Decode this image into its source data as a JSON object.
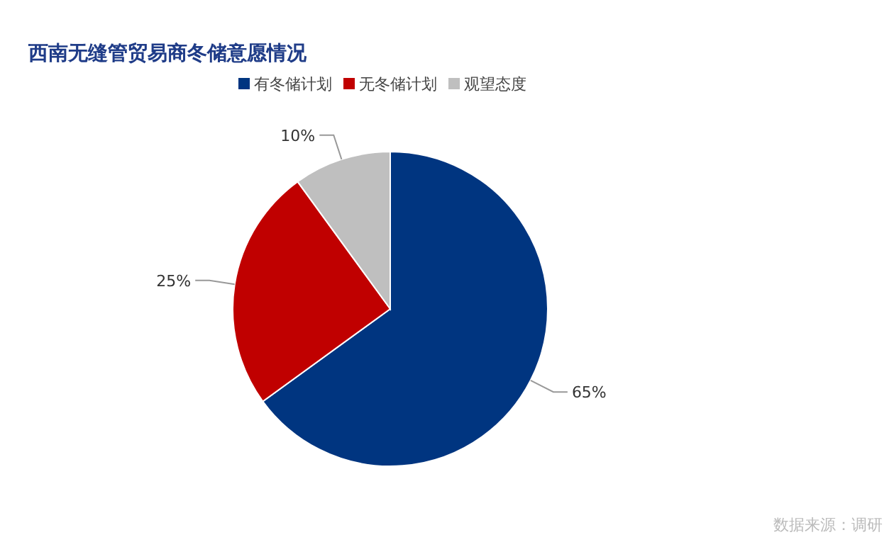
{
  "chart_data": {
    "type": "pie",
    "title": "西南无缝管贸易商冬储意愿情况",
    "categories": [
      "有冬储计划",
      "无冬储计划",
      "观望态度"
    ],
    "values": [
      65,
      25,
      10
    ],
    "colors": [
      "#003580",
      "#c00000",
      "#bfbfbf"
    ],
    "value_labels": [
      "65%",
      "25%",
      "10%"
    ],
    "legend": "top",
    "annotations": [
      "数据来源：调研"
    ]
  }
}
